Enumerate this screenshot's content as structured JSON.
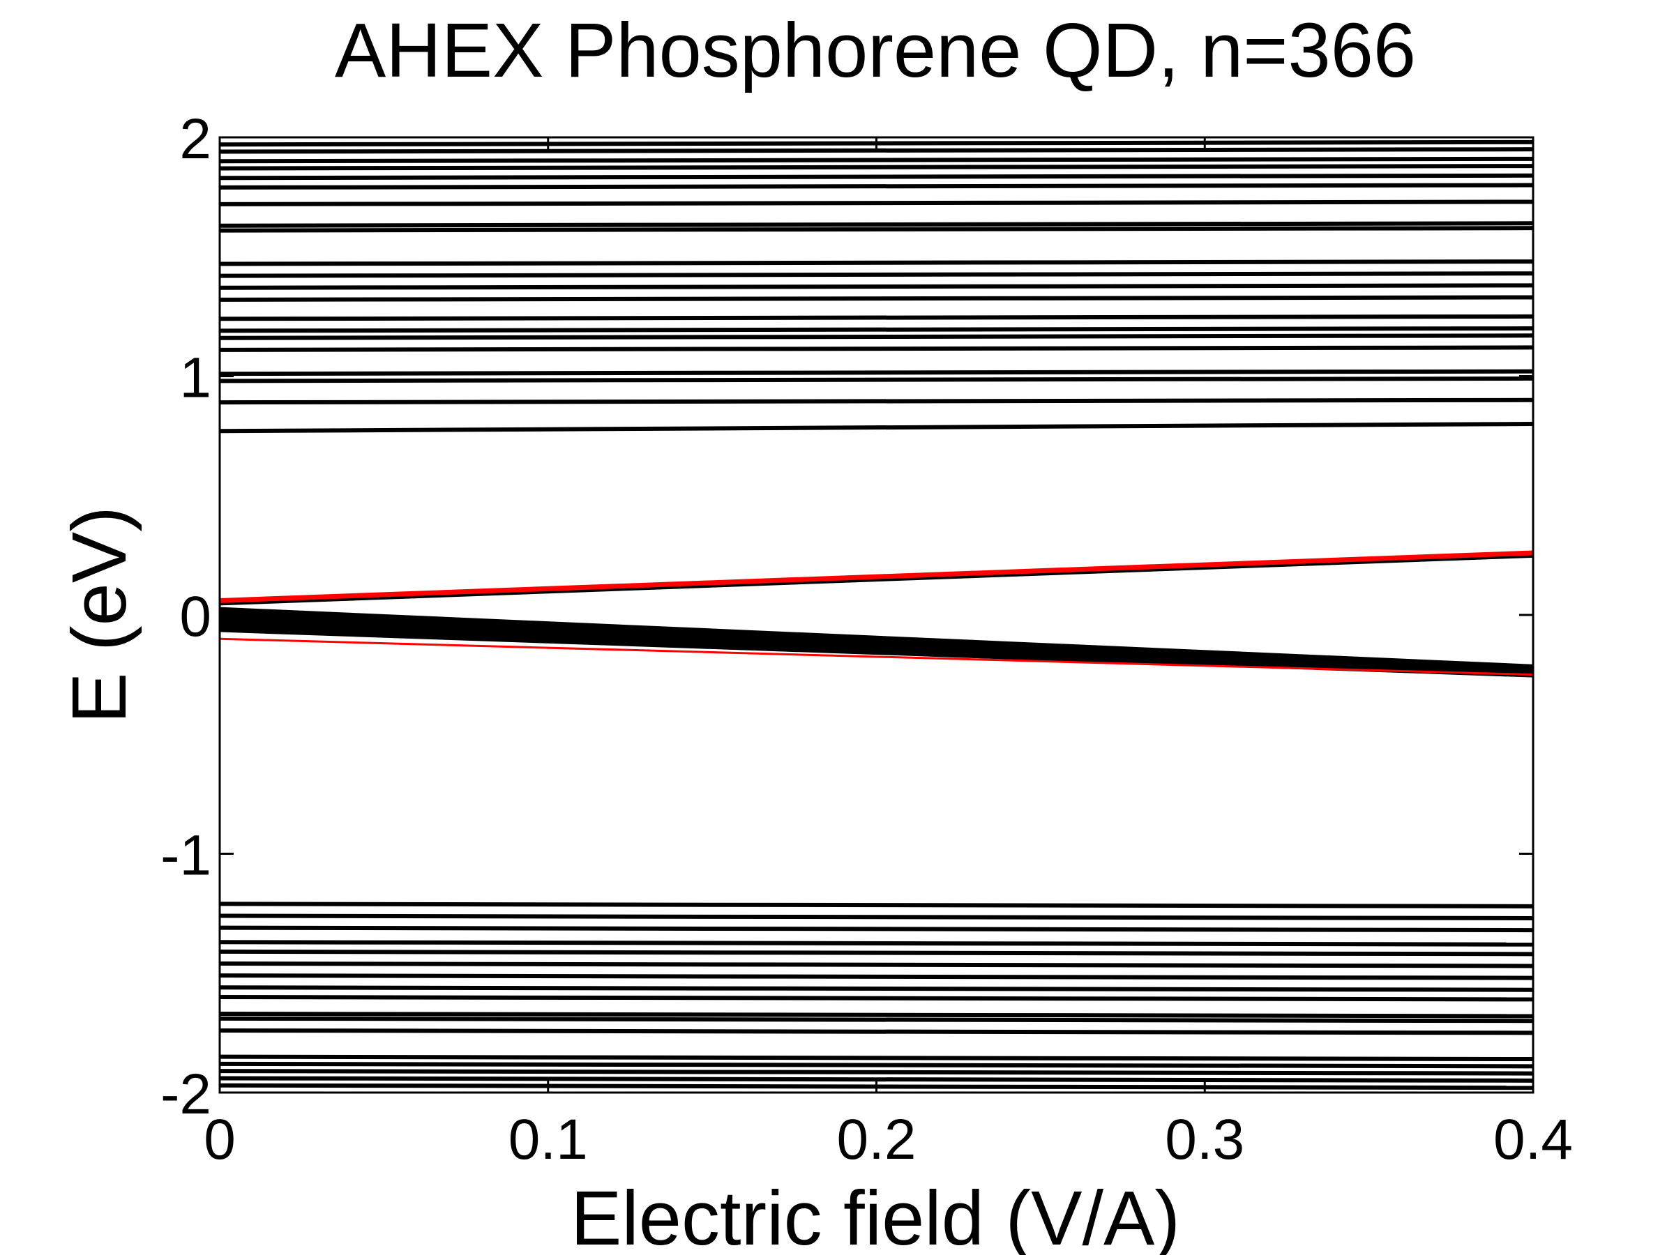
{
  "chart_data": {
    "type": "line",
    "title": "AHEX Phosphorene QD, n=366",
    "xlabel": "Electric field (V/A)",
    "ylabel": "E (eV)",
    "xlim": [
      0,
      0.4
    ],
    "ylim": [
      -2,
      2
    ],
    "xticks": [
      "0",
      "0.1",
      "0.2",
      "0.3",
      "0.4"
    ],
    "yticks": [
      "-2",
      "-1",
      "0",
      "1",
      "2"
    ],
    "grid": false,
    "legend": "none",
    "colors": {
      "levels": "#000000",
      "highlight": "#ff0000",
      "axes": "#000000"
    },
    "series_levels_upper": [
      {
        "start": 1.97,
        "end": 1.98
      },
      {
        "start": 1.94,
        "end": 1.95
      },
      {
        "start": 1.9,
        "end": 1.91
      },
      {
        "start": 1.87,
        "end": 1.88
      },
      {
        "start": 1.83,
        "end": 1.84
      },
      {
        "start": 1.79,
        "end": 1.8
      },
      {
        "start": 1.72,
        "end": 1.73
      },
      {
        "start": 1.63,
        "end": 1.64
      },
      {
        "start": 1.61,
        "end": 1.62
      },
      {
        "start": 1.47,
        "end": 1.48
      },
      {
        "start": 1.42,
        "end": 1.43
      },
      {
        "start": 1.37,
        "end": 1.38
      },
      {
        "start": 1.32,
        "end": 1.33
      },
      {
        "start": 1.24,
        "end": 1.25
      },
      {
        "start": 1.19,
        "end": 1.2
      },
      {
        "start": 1.16,
        "end": 1.17
      },
      {
        "start": 1.11,
        "end": 1.12
      },
      {
        "start": 1.01,
        "end": 1.02
      },
      {
        "start": 0.98,
        "end": 0.99
      },
      {
        "start": 0.89,
        "end": 0.9
      },
      {
        "start": 0.77,
        "end": 0.8
      }
    ],
    "series_levels_lower": [
      {
        "start": -1.21,
        "end": -1.22
      },
      {
        "start": -1.26,
        "end": -1.27
      },
      {
        "start": -1.31,
        "end": -1.32
      },
      {
        "start": -1.37,
        "end": -1.38
      },
      {
        "start": -1.41,
        "end": -1.42
      },
      {
        "start": -1.46,
        "end": -1.47
      },
      {
        "start": -1.51,
        "end": -1.52
      },
      {
        "start": -1.56,
        "end": -1.57
      },
      {
        "start": -1.6,
        "end": -1.61
      },
      {
        "start": -1.67,
        "end": -1.68
      },
      {
        "start": -1.69,
        "end": -1.7
      },
      {
        "start": -1.74,
        "end": -1.75
      },
      {
        "start": -1.85,
        "end": -1.86
      },
      {
        "start": -1.88,
        "end": -1.89
      },
      {
        "start": -1.91,
        "end": -1.92
      },
      {
        "start": -1.94,
        "end": -1.95
      },
      {
        "start": -1.97,
        "end": -1.98
      }
    ],
    "series_gap": [
      {
        "start": 0.05,
        "end": 0.25,
        "width": 7
      },
      {
        "start": 0.02,
        "end": -0.22,
        "width": 9
      },
      {
        "start": 0.0,
        "end": -0.23,
        "width": 10
      },
      {
        "start": -0.02,
        "end": -0.24,
        "width": 10
      },
      {
        "start": -0.04,
        "end": -0.24,
        "width": 8
      },
      {
        "start": -0.06,
        "end": -0.25,
        "width": 8
      }
    ],
    "series_highlight": [
      {
        "start": 0.06,
        "end": 0.26,
        "width": 7
      },
      {
        "start": -0.1,
        "end": -0.25,
        "width": 3
      }
    ]
  }
}
